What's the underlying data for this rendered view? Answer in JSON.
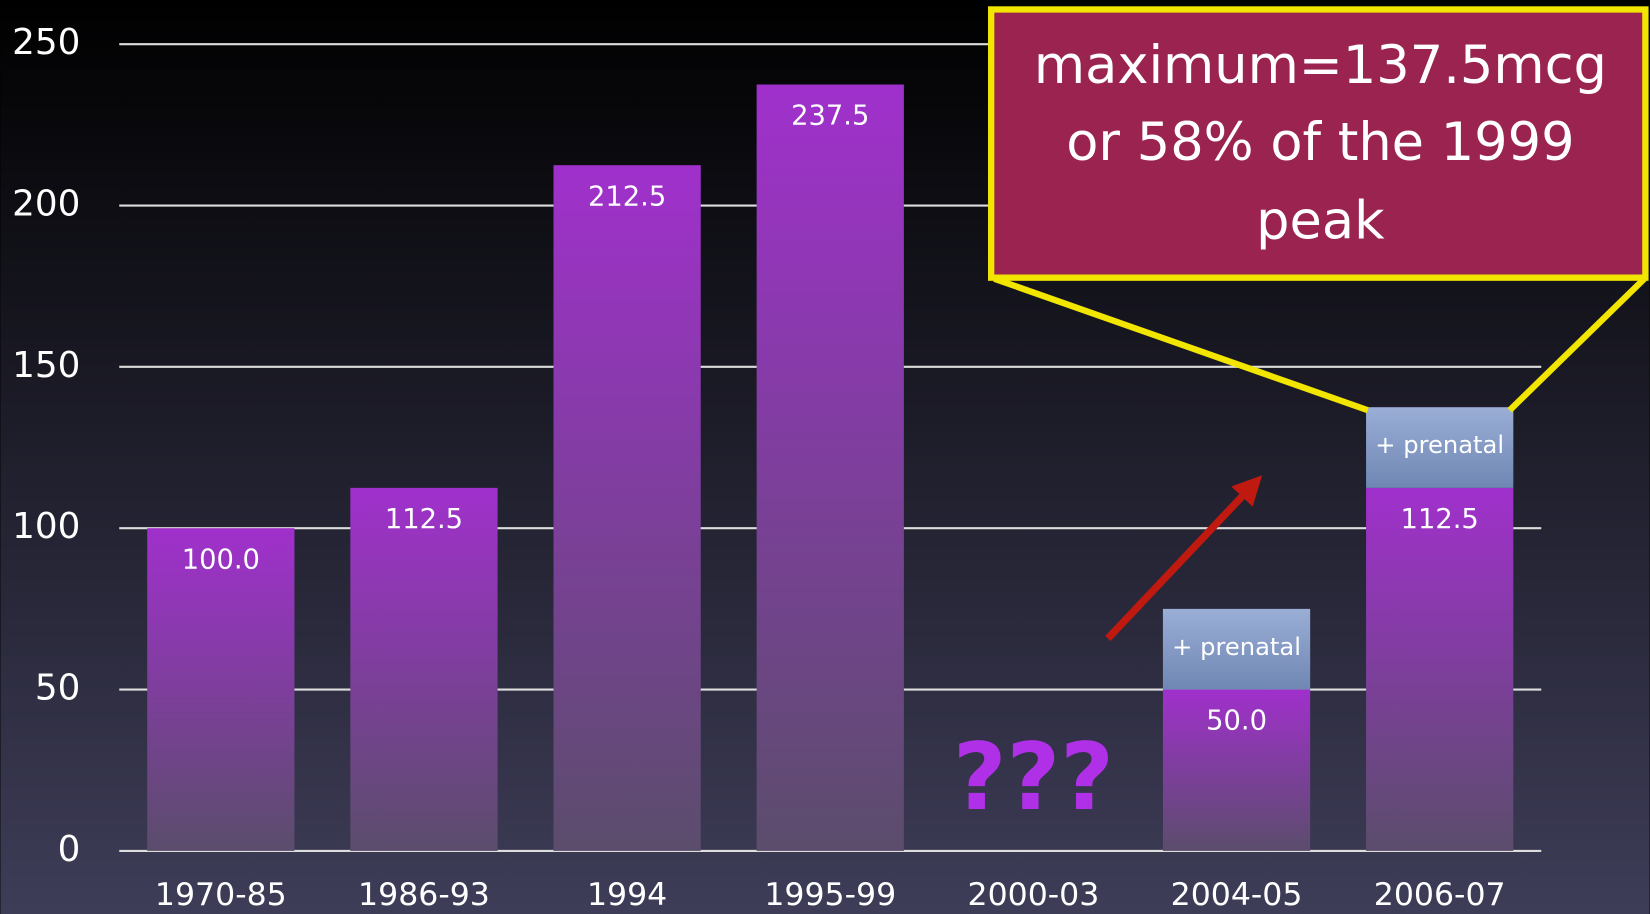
{
  "chart_data": {
    "type": "stacked_bar",
    "categories": [
      "1970-85",
      "1986-93",
      "1994",
      "1995-99",
      "2000-03",
      "2004-05",
      "2006-07"
    ],
    "series": [
      {
        "color": "#9b30c4",
        "values": [
          100,
          112.5,
          212.5,
          237.5,
          null,
          50,
          112.5
        ],
        "value_labels": [
          "100.0",
          "112.5",
          "212.5",
          "237.5",
          null,
          "50.0",
          "112.5"
        ]
      },
      {
        "name": "+ prenatal",
        "color": "#8ea3cc",
        "values": [
          null,
          null,
          null,
          null,
          null,
          25,
          25
        ]
      }
    ],
    "ylim": [
      0,
      250
    ],
    "yticks": [
      0,
      50,
      100,
      150,
      200,
      250
    ],
    "grid": true,
    "missing_marker": "???",
    "callout": {
      "lines": [
        "maximum=137.5mcg",
        "or 58% of the 1999",
        "peak"
      ]
    }
  }
}
